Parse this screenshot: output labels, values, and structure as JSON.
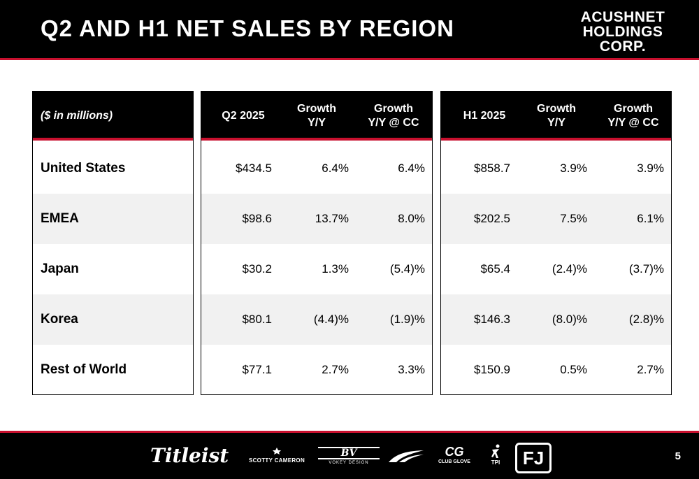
{
  "header": {
    "title": "Q2 AND H1 NET SALES BY REGION",
    "logo_line1": "ACUSHNET",
    "logo_line2": "HOLDINGS",
    "logo_line3": "CORP."
  },
  "table": {
    "units_label": "($ in millions)",
    "q2_headers": {
      "col1": "Q2 2025",
      "col2_line1": "Growth",
      "col2_line2": "Y/Y",
      "col3_line1": "Growth",
      "col3_line2": "Y/Y @ CC"
    },
    "h1_headers": {
      "col1": "H1 2025",
      "col2_line1": "Growth",
      "col2_line2": "Y/Y",
      "col3_line1": "Growth",
      "col3_line2": "Y/Y @ CC"
    },
    "rows": [
      {
        "region": "United States",
        "q2_sales": "$434.5",
        "q2_growth": "6.4%",
        "q2_growth_cc": "6.4%",
        "h1_sales": "$858.7",
        "h1_growth": "3.9%",
        "h1_growth_cc": "3.9%"
      },
      {
        "region": "EMEA",
        "q2_sales": "$98.6",
        "q2_growth": "13.7%",
        "q2_growth_cc": "8.0%",
        "h1_sales": "$202.5",
        "h1_growth": "7.5%",
        "h1_growth_cc": "6.1%"
      },
      {
        "region": "Japan",
        "q2_sales": "$30.2",
        "q2_growth": "1.3%",
        "q2_growth_cc": "(5.4)%",
        "h1_sales": "$65.4",
        "h1_growth": "(2.4)%",
        "h1_growth_cc": "(3.7)%"
      },
      {
        "region": "Korea",
        "q2_sales": "$80.1",
        "q2_growth": "(4.4)%",
        "q2_growth_cc": "(1.9)%",
        "h1_sales": "$146.3",
        "h1_growth": "(8.0)%",
        "h1_growth_cc": "(2.8)%"
      },
      {
        "region": "Rest of World",
        "q2_sales": "$77.1",
        "q2_growth": "2.7%",
        "q2_growth_cc": "3.3%",
        "h1_sales": "$150.9",
        "h1_growth": "0.5%",
        "h1_growth_cc": "2.7%"
      }
    ]
  },
  "footer": {
    "brands": {
      "titleist": "Titleist",
      "scotty_cameron": "SCOTTY CAMERON",
      "vokey_mark": "BV",
      "vokey": "VOKEY DESIGN",
      "club_glove_mark": "CG",
      "club_glove": "CLUB GLOVE",
      "tpi": "TPI",
      "footjoy": "FJ"
    },
    "page_number": "5"
  },
  "colors": {
    "black": "#000000",
    "accent_red": "#c8102e",
    "row_shade": "#f1f1f1"
  }
}
